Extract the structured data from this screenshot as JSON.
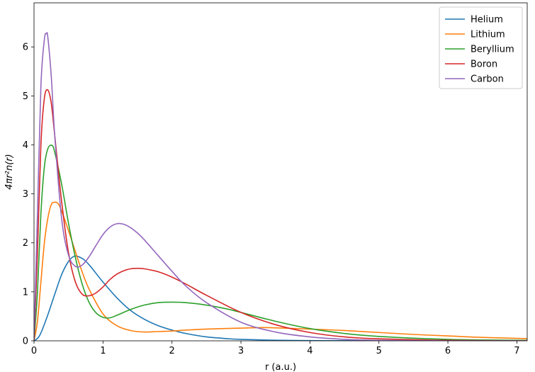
{
  "chart_data": {
    "type": "line",
    "xlabel": "r (a.u.)",
    "ylabel": "4πr²n(r)",
    "xlim": [
      0,
      7.15
    ],
    "ylim": [
      0,
      6.9
    ],
    "xticks": [
      0,
      1,
      2,
      3,
      4,
      5,
      6,
      7
    ],
    "yticks": [
      0,
      1,
      2,
      3,
      4,
      5,
      6
    ],
    "legend_position": "top-right",
    "grid": false,
    "series": [
      {
        "name": "Helium",
        "color": "#1f77b4",
        "x": [
          0,
          0.05,
          0.1,
          0.2,
          0.3,
          0.4,
          0.5,
          0.59,
          0.7,
          0.8,
          1.0,
          1.2,
          1.4,
          1.6,
          1.8,
          2.0,
          2.2,
          2.5,
          2.8,
          3.0,
          3.5,
          4.0,
          4.5,
          5.0,
          6.0,
          7.15
        ],
        "y": [
          0,
          0.05,
          0.16,
          0.53,
          0.95,
          1.35,
          1.62,
          1.73,
          1.68,
          1.55,
          1.2,
          0.88,
          0.62,
          0.44,
          0.31,
          0.22,
          0.15,
          0.08,
          0.045,
          0.03,
          0.012,
          0.005,
          0.002,
          0.001,
          0,
          0
        ]
      },
      {
        "name": "Lithium",
        "color": "#ff7f0e",
        "x": [
          0,
          0.05,
          0.1,
          0.15,
          0.2,
          0.25,
          0.3,
          0.35,
          0.4,
          0.5,
          0.6,
          0.7,
          0.8,
          1.0,
          1.2,
          1.4,
          1.6,
          1.8,
          2.0,
          2.2,
          2.5,
          3.0,
          3.3,
          3.5,
          4.0,
          4.5,
          5.0,
          5.5,
          6.0,
          6.5,
          7.15
        ],
        "y": [
          0,
          0.4,
          1.2,
          2.0,
          2.5,
          2.78,
          2.83,
          2.8,
          2.65,
          2.25,
          1.82,
          1.4,
          1.05,
          0.55,
          0.31,
          0.21,
          0.18,
          0.19,
          0.2,
          0.22,
          0.24,
          0.26,
          0.27,
          0.265,
          0.24,
          0.21,
          0.17,
          0.13,
          0.1,
          0.07,
          0.045
        ]
      },
      {
        "name": "Beryllium",
        "color": "#2ca02c",
        "x": [
          0,
          0.05,
          0.1,
          0.15,
          0.2,
          0.26,
          0.3,
          0.4,
          0.5,
          0.6,
          0.7,
          0.8,
          0.9,
          1.0,
          1.1,
          1.2,
          1.4,
          1.6,
          1.8,
          2.0,
          2.2,
          2.5,
          2.8,
          3.0,
          3.5,
          4.0,
          4.5,
          5.0,
          6.0,
          7.15
        ],
        "y": [
          0,
          1.0,
          2.6,
          3.55,
          3.92,
          3.99,
          3.85,
          3.2,
          2.4,
          1.7,
          1.15,
          0.78,
          0.57,
          0.48,
          0.47,
          0.52,
          0.64,
          0.73,
          0.78,
          0.79,
          0.78,
          0.73,
          0.65,
          0.58,
          0.4,
          0.25,
          0.15,
          0.09,
          0.03,
          0.01
        ]
      },
      {
        "name": "Boron",
        "color": "#d62728",
        "x": [
          0,
          0.05,
          0.1,
          0.15,
          0.2,
          0.25,
          0.3,
          0.4,
          0.5,
          0.6,
          0.7,
          0.8,
          0.9,
          1.0,
          1.1,
          1.2,
          1.3,
          1.4,
          1.5,
          1.6,
          1.8,
          2.0,
          2.2,
          2.5,
          3.0,
          3.5,
          4.0,
          4.5,
          5.0,
          6.0,
          7.15
        ],
        "y": [
          0,
          1.8,
          4.0,
          4.95,
          5.12,
          4.85,
          4.2,
          2.85,
          1.8,
          1.2,
          0.95,
          0.92,
          0.98,
          1.1,
          1.25,
          1.36,
          1.43,
          1.47,
          1.48,
          1.47,
          1.41,
          1.3,
          1.16,
          0.93,
          0.58,
          0.33,
          0.17,
          0.08,
          0.04,
          0.01,
          0
        ]
      },
      {
        "name": "Carbon",
        "color": "#9467bd",
        "x": [
          0,
          0.05,
          0.1,
          0.15,
          0.18,
          0.2,
          0.25,
          0.3,
          0.4,
          0.5,
          0.6,
          0.7,
          0.8,
          0.9,
          1.0,
          1.1,
          1.2,
          1.3,
          1.4,
          1.5,
          1.6,
          1.8,
          2.0,
          2.2,
          2.5,
          3.0,
          3.5,
          4.0,
          4.5,
          5.0,
          6.0,
          7.15
        ],
        "y": [
          0,
          2.6,
          5.2,
          6.15,
          6.27,
          6.2,
          5.4,
          4.2,
          2.5,
          1.75,
          1.52,
          1.55,
          1.72,
          1.95,
          2.17,
          2.32,
          2.39,
          2.38,
          2.31,
          2.2,
          2.06,
          1.74,
          1.42,
          1.12,
          0.78,
          0.38,
          0.18,
          0.08,
          0.03,
          0.01,
          0,
          0
        ]
      }
    ]
  }
}
